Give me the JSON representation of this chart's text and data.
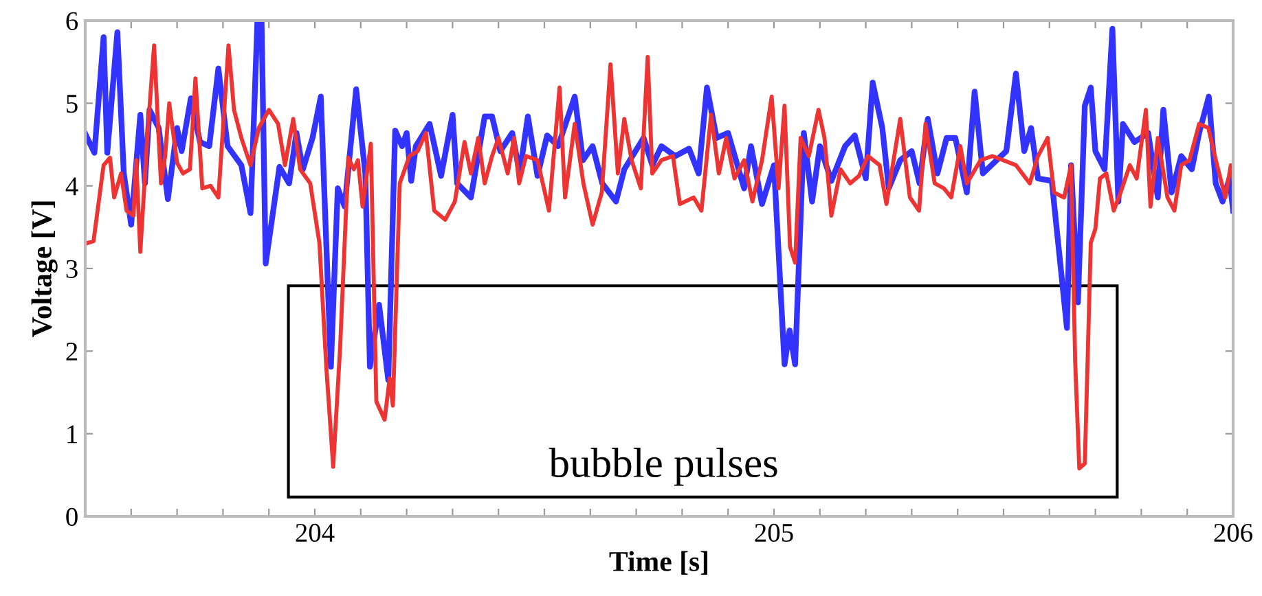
{
  "chart_data": {
    "type": "line",
    "xlabel": "Time [s]",
    "ylabel": "Voltage [V]",
    "xlim": [
      203.5,
      206
    ],
    "ylim": [
      0,
      6
    ],
    "xticks": [
      {
        "value": 203.6,
        "label": null
      },
      {
        "value": 203.7,
        "label": null
      },
      {
        "value": 203.8,
        "label": null
      },
      {
        "value": 203.9,
        "label": null
      },
      204,
      {
        "value": 204.1,
        "label": null
      },
      {
        "value": 204.2,
        "label": null
      },
      {
        "value": 204.3,
        "label": null
      },
      {
        "value": 204.4,
        "label": null
      },
      {
        "value": 204.5,
        "label": null
      },
      {
        "value": 204.6,
        "label": null
      },
      {
        "value": 204.7,
        "label": null
      },
      {
        "value": 204.8,
        "label": null
      },
      {
        "value": 204.9,
        "label": null
      },
      205,
      {
        "value": 205.1,
        "label": null
      },
      {
        "value": 205.2,
        "label": null
      },
      {
        "value": 205.3,
        "label": null
      },
      {
        "value": 205.4,
        "label": null
      },
      {
        "value": 205.5,
        "label": null
      },
      {
        "value": 205.6,
        "label": null
      },
      {
        "value": 205.7,
        "label": null
      },
      {
        "value": 205.8,
        "label": null
      },
      {
        "value": 205.9,
        "label": null
      },
      206
    ],
    "yticks": [
      0,
      1,
      2,
      3,
      4,
      5,
      6
    ],
    "grid": false,
    "marker": "none",
    "line_style": "solid",
    "annotations": [
      "bubble pulses"
    ],
    "series": [
      {
        "color": "#3333ff",
        "x": [
          203.5,
          203.52,
          203.54,
          203.548,
          203.57,
          203.584,
          203.6,
          203.62,
          203.63,
          203.64,
          203.66,
          203.68,
          203.7,
          203.71,
          203.73,
          203.75,
          203.77,
          203.79,
          203.81,
          203.84,
          203.86,
          203.875,
          203.884,
          203.893,
          203.923,
          203.944,
          203.96,
          203.974,
          203.995,
          204.013,
          204.035,
          204.05,
          204.065,
          204.09,
          204.11,
          204.12,
          204.14,
          204.16,
          204.175,
          204.19,
          204.2,
          204.21,
          204.22,
          204.25,
          204.275,
          204.3,
          204.31,
          204.34,
          204.37,
          204.386,
          204.404,
          204.43,
          204.446,
          204.464,
          204.485,
          204.506,
          204.53,
          204.566,
          204.584,
          204.605,
          204.626,
          204.656,
          204.674,
          204.716,
          204.735,
          204.755,
          204.785,
          204.815,
          204.836,
          204.854,
          204.875,
          204.9,
          204.935,
          204.95,
          204.974,
          205.0,
          205.023,
          205.034,
          205.046,
          205.065,
          205.083,
          205.1,
          205.125,
          205.155,
          205.176,
          205.2,
          205.215,
          205.236,
          205.25,
          205.275,
          205.3,
          205.317,
          205.335,
          205.356,
          205.376,
          205.395,
          205.42,
          205.437,
          205.455,
          205.485,
          205.506,
          205.527,
          205.545,
          205.56,
          205.575,
          205.605,
          205.638,
          205.647,
          205.662,
          205.677,
          205.69,
          205.7,
          205.72,
          205.737,
          205.75,
          205.76,
          205.785,
          205.815,
          205.836,
          205.848,
          205.866,
          205.887,
          205.91,
          205.926,
          205.947,
          205.962,
          205.977,
          205.992,
          206.0
        ],
        "values": [
          4.63,
          4.4,
          5.8,
          4.4,
          5.86,
          4.15,
          3.53,
          4.86,
          4.03,
          4.92,
          4.7,
          3.84,
          4.7,
          4.42,
          5.06,
          4.53,
          4.48,
          5.42,
          4.48,
          4.25,
          3.67,
          6.0,
          6.0,
          3.06,
          4.23,
          4.03,
          4.64,
          4.2,
          4.58,
          5.08,
          1.81,
          3.97,
          3.75,
          5.17,
          4.15,
          1.81,
          2.56,
          1.65,
          4.67,
          4.48,
          4.64,
          4.06,
          4.48,
          4.75,
          4.12,
          4.86,
          4.03,
          3.86,
          4.84,
          4.84,
          4.42,
          4.64,
          4.15,
          4.84,
          4.12,
          4.61,
          4.48,
          5.08,
          4.31,
          4.48,
          4.03,
          3.81,
          4.2,
          4.58,
          4.25,
          4.48,
          4.36,
          4.45,
          4.15,
          5.19,
          4.58,
          4.64,
          3.97,
          4.48,
          3.78,
          4.25,
          1.84,
          2.25,
          1.84,
          4.64,
          3.81,
          4.48,
          4.06,
          4.48,
          4.61,
          4.09,
          5.25,
          4.7,
          3.97,
          4.31,
          4.42,
          4.03,
          4.81,
          4.15,
          4.58,
          4.58,
          3.92,
          5.14,
          4.15,
          4.31,
          4.42,
          5.36,
          4.42,
          4.7,
          4.09,
          4.06,
          2.28,
          4.25,
          2.59,
          4.97,
          5.19,
          4.42,
          4.2,
          5.9,
          3.81,
          4.75,
          4.53,
          4.64,
          3.86,
          4.92,
          3.92,
          4.36,
          4.2,
          4.64,
          5.08,
          4.03,
          3.81,
          4.09,
          3.7
        ]
      },
      {
        "color": "#ee3333",
        "x": [
          203.5,
          203.518,
          203.54,
          203.554,
          203.563,
          203.578,
          203.59,
          203.605,
          203.611,
          203.62,
          203.635,
          203.65,
          203.665,
          203.674,
          203.683,
          203.7,
          203.713,
          203.728,
          203.74,
          203.755,
          203.773,
          203.79,
          203.812,
          203.824,
          203.84,
          203.86,
          203.878,
          203.9,
          203.92,
          203.935,
          203.953,
          203.968,
          203.99,
          204.01,
          204.025,
          204.04,
          204.055,
          204.073,
          204.085,
          204.094,
          204.104,
          204.122,
          204.134,
          204.152,
          204.163,
          204.17,
          204.185,
          204.206,
          204.224,
          204.242,
          204.26,
          204.284,
          204.305,
          204.326,
          204.34,
          204.356,
          204.37,
          204.386,
          204.4,
          204.42,
          204.434,
          204.445,
          204.46,
          204.485,
          204.51,
          204.533,
          204.545,
          204.566,
          204.585,
          204.605,
          204.625,
          204.644,
          204.66,
          204.674,
          204.69,
          204.71,
          204.725,
          204.735,
          204.755,
          204.78,
          204.795,
          204.825,
          204.842,
          204.863,
          204.88,
          204.896,
          204.914,
          204.935,
          204.953,
          204.974,
          204.995,
          205.01,
          205.023,
          205.035,
          205.046,
          205.058,
          205.076,
          205.097,
          205.11,
          205.125,
          205.145,
          205.166,
          205.185,
          205.205,
          205.23,
          205.245,
          205.275,
          205.296,
          205.316,
          205.33,
          205.35,
          205.37,
          205.386,
          205.406,
          205.42,
          205.45,
          205.476,
          205.527,
          205.557,
          205.575,
          205.596,
          205.61,
          205.632,
          205.647,
          205.656,
          205.665,
          205.677,
          205.69,
          205.7,
          205.71,
          205.724,
          205.74,
          205.755,
          205.775,
          205.79,
          205.81,
          205.82,
          205.836,
          205.857,
          205.872,
          205.887,
          205.905,
          205.926,
          205.946,
          205.965,
          205.983,
          205.995,
          206.0
        ],
        "values": [
          3.3,
          3.33,
          4.25,
          4.34,
          3.86,
          4.15,
          3.7,
          3.64,
          4.31,
          3.2,
          4.58,
          5.7,
          4.03,
          4.36,
          5.0,
          4.28,
          4.15,
          4.2,
          5.3,
          3.97,
          4.0,
          3.86,
          5.7,
          4.92,
          4.58,
          4.25,
          4.7,
          4.92,
          4.75,
          4.25,
          4.81,
          4.2,
          4.03,
          3.31,
          1.81,
          0.6,
          2.03,
          4.34,
          4.2,
          4.31,
          3.75,
          4.51,
          1.39,
          1.17,
          1.67,
          1.34,
          4.03,
          4.36,
          4.42,
          4.64,
          3.7,
          3.59,
          3.81,
          4.53,
          4.15,
          4.58,
          4.03,
          4.36,
          4.58,
          4.15,
          4.58,
          4.03,
          4.36,
          4.31,
          3.7,
          5.19,
          3.86,
          4.75,
          4.03,
          3.53,
          3.92,
          5.47,
          4.15,
          4.81,
          4.31,
          3.97,
          5.56,
          4.15,
          4.31,
          4.36,
          3.78,
          3.86,
          3.7,
          4.86,
          4.15,
          4.58,
          4.09,
          4.31,
          3.81,
          4.31,
          5.08,
          3.97,
          4.97,
          3.26,
          3.07,
          4.58,
          4.36,
          4.92,
          4.58,
          3.64,
          4.2,
          4.03,
          4.12,
          4.36,
          4.25,
          3.78,
          4.81,
          3.86,
          3.7,
          4.75,
          4.03,
          3.97,
          3.86,
          4.48,
          4.03,
          4.31,
          4.36,
          4.25,
          4.03,
          4.36,
          4.58,
          3.92,
          3.86,
          4.25,
          1.87,
          0.58,
          0.64,
          3.31,
          3.48,
          4.09,
          4.15,
          3.7,
          3.92,
          4.25,
          4.09,
          4.92,
          3.75,
          4.58,
          3.86,
          3.7,
          4.25,
          4.31,
          4.75,
          4.7,
          4.25,
          3.86,
          4.25,
          4.09
        ]
      }
    ]
  }
}
